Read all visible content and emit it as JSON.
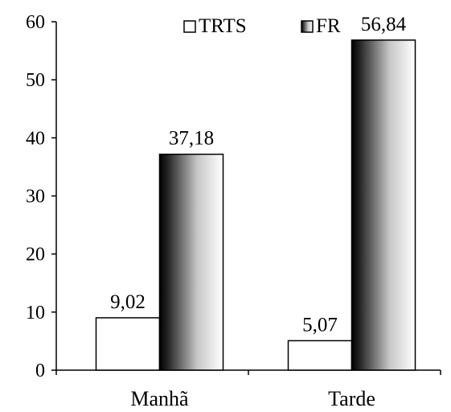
{
  "chart_data": {
    "type": "bar",
    "categories": [
      "Manhã",
      "Tarde"
    ],
    "series": [
      {
        "name": "TRTS",
        "values": [
          9.02,
          5.07
        ],
        "labels": [
          "9,02",
          "5,07"
        ],
        "fill": "white"
      },
      {
        "name": "FR",
        "values": [
          37.18,
          56.84
        ],
        "labels": [
          "37,18",
          "56,84"
        ],
        "fill": "diagonal-gradient"
      }
    ],
    "yticks": [
      "0",
      "10",
      "20",
      "30",
      "40",
      "50",
      "60"
    ],
    "ylim": [
      0,
      60
    ],
    "grid": false,
    "legend_position": "top-right",
    "colors": {
      "axis": "#000000",
      "bar_outline": "#000000",
      "bar_light": "#ffffff",
      "bar_dark": "#000000"
    }
  }
}
